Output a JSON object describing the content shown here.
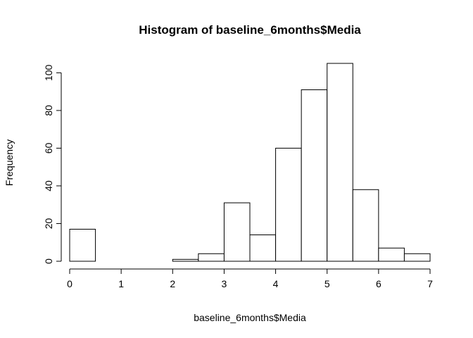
{
  "chart_data": {
    "type": "bar",
    "title": "Histogram of baseline_6months$Media",
    "xlabel": "baseline_6months$Media",
    "ylabel": "Frequency",
    "bins": [
      {
        "start": 0.0,
        "end": 0.5,
        "count": 17
      },
      {
        "start": 0.5,
        "end": 1.0,
        "count": 0
      },
      {
        "start": 1.0,
        "end": 1.5,
        "count": 0
      },
      {
        "start": 1.5,
        "end": 2.0,
        "count": 0
      },
      {
        "start": 2.0,
        "end": 2.5,
        "count": 1
      },
      {
        "start": 2.5,
        "end": 3.0,
        "count": 4
      },
      {
        "start": 3.0,
        "end": 3.5,
        "count": 31
      },
      {
        "start": 3.5,
        "end": 4.0,
        "count": 14
      },
      {
        "start": 4.0,
        "end": 4.5,
        "count": 60
      },
      {
        "start": 4.5,
        "end": 5.0,
        "count": 91
      },
      {
        "start": 5.0,
        "end": 5.5,
        "count": 105
      },
      {
        "start": 5.5,
        "end": 6.0,
        "count": 38
      },
      {
        "start": 6.0,
        "end": 6.5,
        "count": 7
      },
      {
        "start": 6.5,
        "end": 7.0,
        "count": 4
      }
    ],
    "xlim": [
      0,
      7
    ],
    "ylim": [
      0,
      105
    ],
    "x_ticks": [
      0,
      1,
      2,
      3,
      4,
      5,
      6,
      7
    ],
    "y_ticks": [
      0,
      20,
      40,
      60,
      80,
      100
    ],
    "grid": false,
    "legend": "none",
    "colors": {
      "bar_fill": "#ffffff",
      "bar_stroke": "#000000"
    }
  }
}
